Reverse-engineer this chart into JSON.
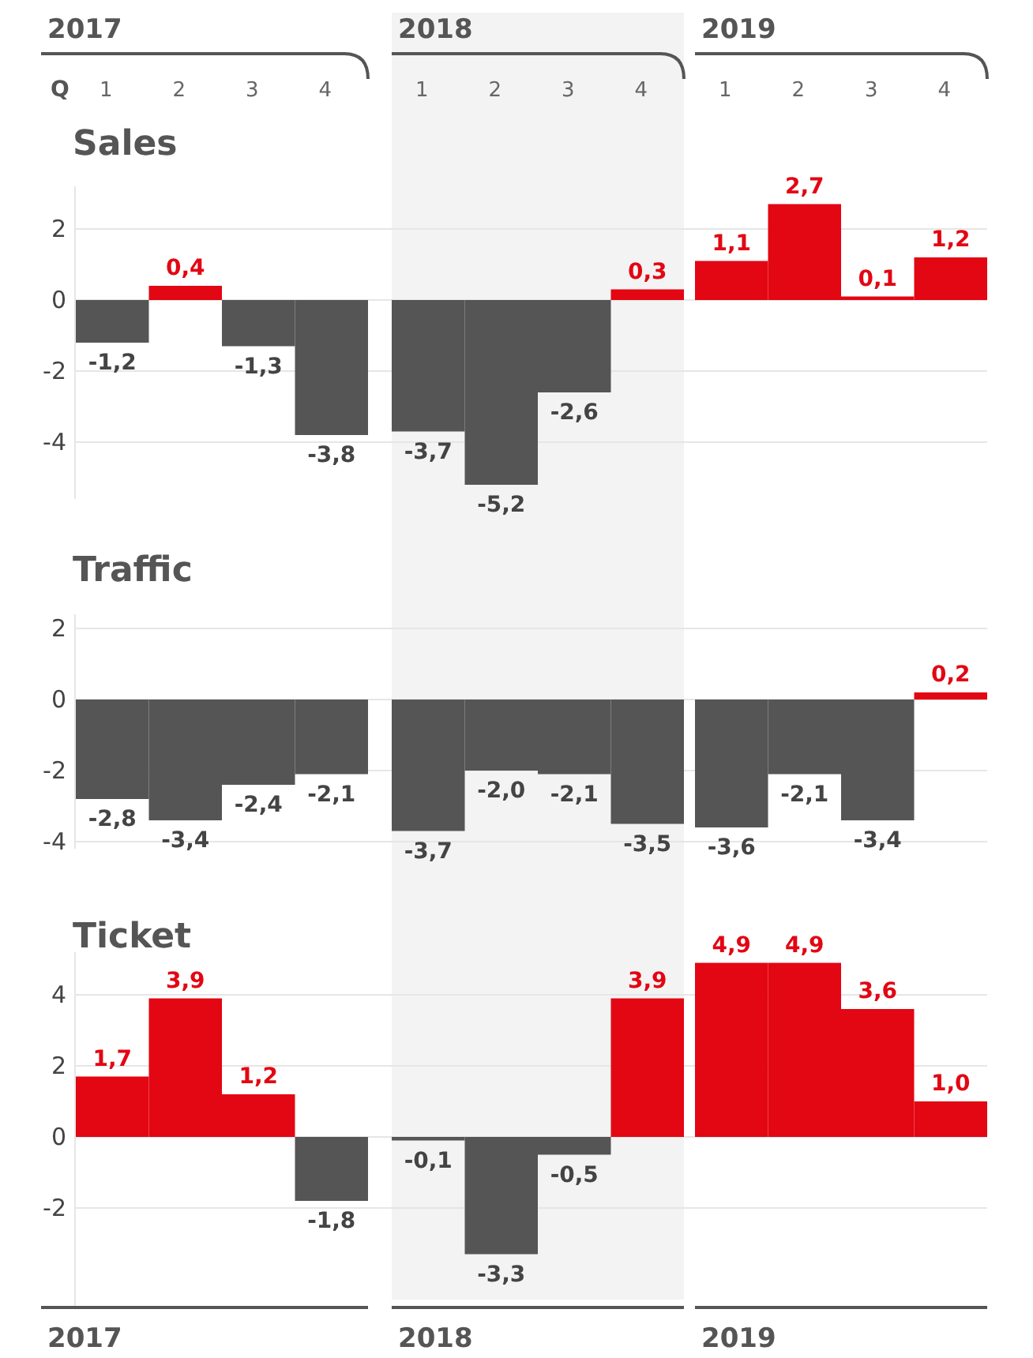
{
  "chart_data": [
    {
      "type": "bar",
      "title": "Sales",
      "xlabel": "Q",
      "categories": [
        "1",
        "2",
        "3",
        "4",
        "1",
        "2",
        "3",
        "4",
        "1",
        "2",
        "3",
        "4"
      ],
      "values": [
        -1.2,
        0.4,
        -1.3,
        -3.8,
        -3.7,
        -5.2,
        -2.6,
        0.3,
        1.1,
        2.7,
        0.1,
        1.2
      ],
      "value_labels": [
        "-1,2",
        "0,4",
        "-1,3",
        "-3,8",
        "-3,7",
        "-5,2",
        "-2,6",
        "0,3",
        "1,1",
        "2,7",
        "0,1",
        "1,2"
      ],
      "colors": [
        "#555555",
        "#e30613",
        "#555555",
        "#555555",
        "#555555",
        "#555555",
        "#555555",
        "#e30613",
        "#e30613",
        "#e30613",
        "#e30613",
        "#e30613"
      ],
      "ylim": [
        -5.6,
        3.2
      ],
      "yticks": [
        -4,
        -2,
        0,
        2
      ],
      "grid": "y",
      "annotations": [
        "2017",
        "2018",
        "2019"
      ]
    },
    {
      "type": "bar",
      "title": "Traffic",
      "categories": [
        null,
        null,
        null,
        null,
        null,
        null,
        null,
        null,
        null,
        null,
        null,
        null
      ],
      "values": [
        -2.8,
        -3.4,
        -2.4,
        -2.1,
        -3.7,
        -2.0,
        -2.1,
        -3.5,
        -3.6,
        -2.1,
        -3.4,
        0.2
      ],
      "value_labels": [
        "-2,8",
        "-3,4",
        "-2,4",
        "-2,1",
        "-3,7",
        "-2,0",
        "-2,1",
        "-3,5",
        "-3,6",
        "-2,1",
        "-3,4",
        "0,2"
      ],
      "colors": [
        "#555555",
        "#555555",
        "#555555",
        "#555555",
        "#555555",
        "#555555",
        "#555555",
        "#555555",
        "#555555",
        "#555555",
        "#555555",
        "#e30613"
      ],
      "ylim": [
        -4.2,
        2.4
      ],
      "yticks": [
        -4,
        -2,
        0,
        2
      ],
      "grid": "y",
      "tick_labels": "y"
    },
    {
      "type": "bar",
      "title": "Ticket",
      "categories": [
        null,
        null,
        null,
        null,
        null,
        null,
        null,
        null,
        null,
        null,
        null,
        null
      ],
      "values": [
        1.7,
        3.9,
        1.2,
        -1.8,
        -0.1,
        -3.3,
        -0.5,
        3.9,
        4.9,
        4.9,
        3.6,
        1.0
      ],
      "value_labels": [
        "1,7",
        "3,9",
        "1,2",
        "-1,8",
        "-0,1",
        "-3,3",
        "-0,5",
        "3,9",
        "4,9",
        "4,9",
        "3,6",
        "1,0"
      ],
      "colors": [
        "#e30613",
        "#e30613",
        "#e30613",
        "#555555",
        "#555555",
        "#555555",
        "#555555",
        "#e30613",
        "#e30613",
        "#e30613",
        "#e30613",
        "#e30613"
      ],
      "ylim": [
        -4.8,
        5.2
      ],
      "yticks": [
        -2,
        0,
        2,
        4
      ],
      "grid": "y",
      "tick_labels": "y",
      "annotations": [
        "2017",
        "2018",
        "2019"
      ]
    }
  ]
}
